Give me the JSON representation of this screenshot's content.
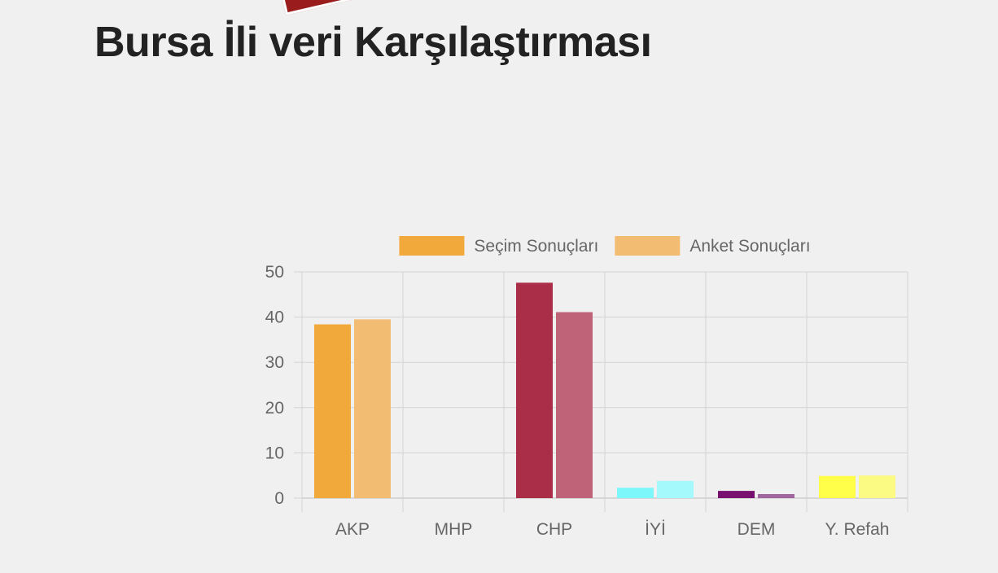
{
  "page": {
    "title": "Bursa İli veri Karşılaştırması"
  },
  "chart_data": {
    "type": "bar",
    "categories": [
      "AKP",
      "MHP",
      "CHP",
      "İYİ",
      "DEM",
      "Y. Refah"
    ],
    "series": [
      {
        "name": "Seçim Sonuçları",
        "values": [
          38.4,
          0,
          47.6,
          2.3,
          1.6,
          4.9
        ],
        "colors": [
          "#f2a93b",
          "#f2a93b",
          "#ab2e48",
          "#7df7fa",
          "#77106f",
          "#ffff4a"
        ],
        "legend_color": "#f2a93b"
      },
      {
        "name": "Anket Sonuçları",
        "values": [
          39.5,
          0,
          41.1,
          3.8,
          0.9,
          5.0
        ],
        "colors": [
          "#f2bd73",
          "#f2bd73",
          "#bf6478",
          "#a3f9fb",
          "#a066a0",
          "#fbfb83"
        ],
        "legend_color": "#f2bd73"
      }
    ],
    "ylim": [
      0,
      50
    ],
    "yticks": [
      "0",
      "10",
      "20",
      "30",
      "40",
      "50"
    ],
    "grid": true,
    "legend_position": "top"
  }
}
